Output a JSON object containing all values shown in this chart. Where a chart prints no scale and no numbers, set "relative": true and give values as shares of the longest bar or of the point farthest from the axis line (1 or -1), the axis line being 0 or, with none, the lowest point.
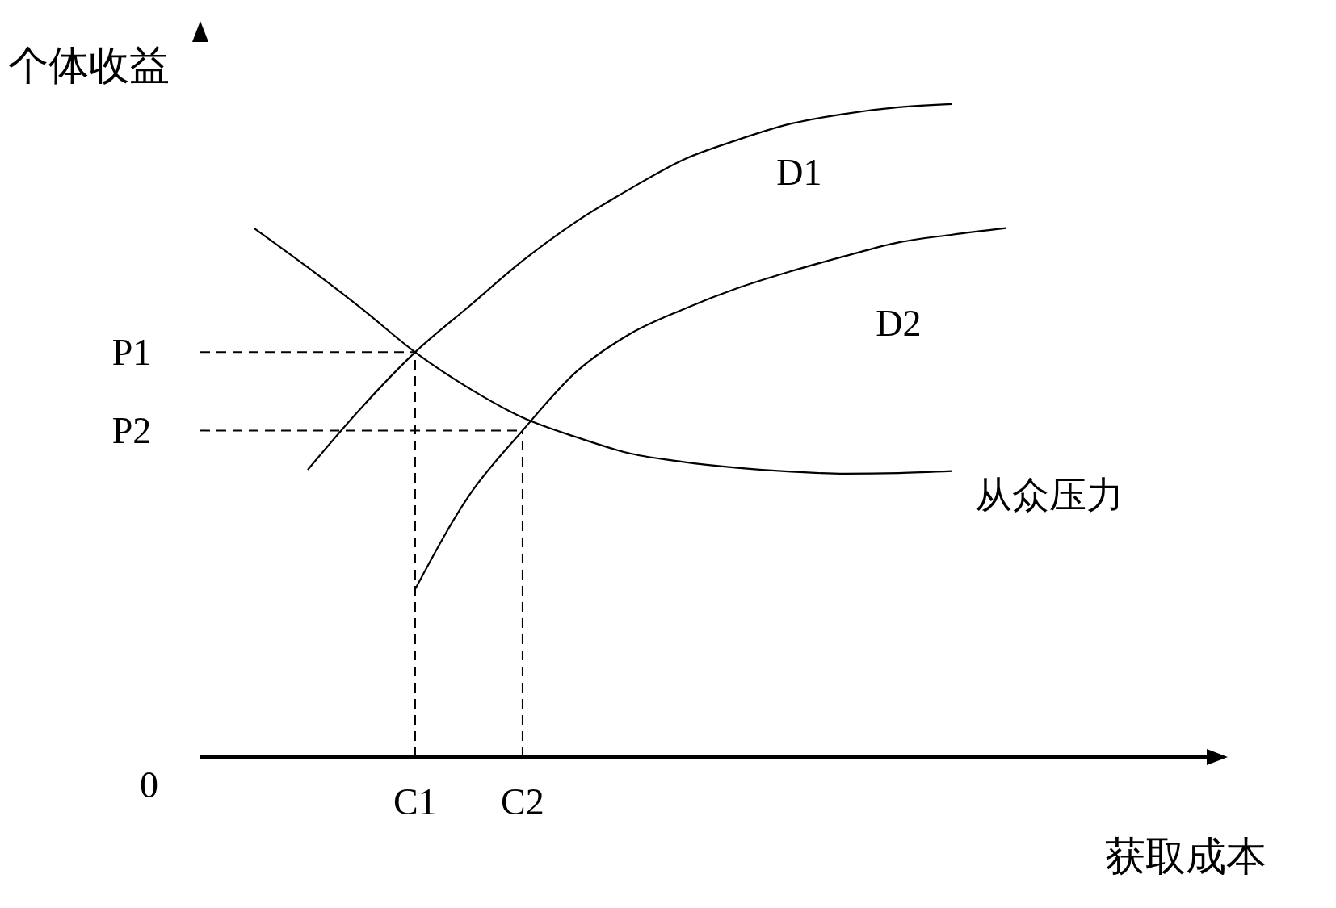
{
  "chart_data": {
    "type": "line",
    "relative": true,
    "xlabel": "获取成本",
    "ylabel": "个体收益",
    "categories": [
      null,
      null,
      null,
      null,
      "C1",
      null,
      "C2",
      null,
      null,
      null,
      null,
      null,
      null,
      null,
      null,
      null,
      null,
      null,
      null
    ],
    "marker": "none",
    "series": [
      {
        "name": "D1",
        "color": "#000000",
        "line_style": "solid",
        "values": [
          null,
          null,
          0.44,
          0.535,
          0.62,
          0.69,
          0.76,
          0.82,
          0.87,
          0.915,
          0.945,
          0.97,
          0.985,
          0.995,
          1.0,
          null,
          null,
          null,
          null
        ]
      },
      {
        "name": "D2",
        "color": "#000000",
        "line_style": "solid",
        "values": [
          null,
          null,
          null,
          null,
          0.257,
          0.4,
          0.5,
          0.59,
          0.648,
          0.686,
          0.718,
          0.744,
          0.767,
          0.788,
          0.8,
          0.81,
          null,
          null,
          null
        ]
      },
      {
        "name": "从众压力",
        "color": "#000000",
        "line_style": "solid",
        "values": [
          null,
          0.81,
          0.75,
          0.687,
          0.62,
          0.565,
          0.52,
          0.49,
          0.465,
          0.452,
          0.443,
          0.437,
          0.434,
          0.435,
          0.438,
          null,
          null,
          null,
          null
        ]
      }
    ],
    "ref_lines": [
      {
        "axis": "y",
        "value": 0.62,
        "label": "P1",
        "color": "#000000",
        "line_style": "dashed"
      },
      {
        "axis": "y",
        "value": 0.5,
        "label": "P2",
        "color": "#000000",
        "line_style": "dashed"
      },
      {
        "axis": "x",
        "value": "C1",
        "color": "#000000",
        "line_style": "dashed"
      },
      {
        "axis": "x",
        "value": "C2",
        "color": "#000000",
        "line_style": "dashed"
      }
    ],
    "annotations": [
      "0"
    ]
  }
}
